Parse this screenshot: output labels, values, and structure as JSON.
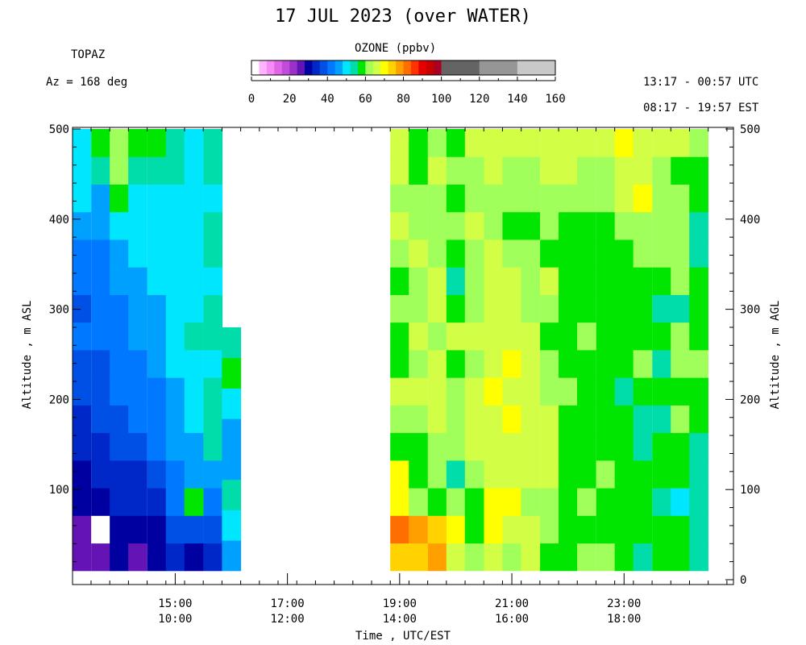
{
  "header": {
    "title": "17 JUL 2023 (over WATER)",
    "instrument": "TOPAZ",
    "azimuth": "Az = 168 deg",
    "utc_range": "13:17 - 00:57 UTC",
    "local_range": "08:17 - 19:57 EST"
  },
  "colorbar": {
    "title": "OZONE (ppbv)",
    "ticks": [
      "0",
      "20",
      "40",
      "60",
      "80",
      "100",
      "120",
      "140",
      "160"
    ],
    "bins": [
      {
        "from": 0,
        "to": 4,
        "color": "#ffffff"
      },
      {
        "from": 4,
        "to": 8,
        "color": "#ffb4ff"
      },
      {
        "from": 8,
        "to": 12,
        "color": "#f58cf5"
      },
      {
        "from": 12,
        "to": 16,
        "color": "#e066e6"
      },
      {
        "from": 16,
        "to": 20,
        "color": "#c34bd9"
      },
      {
        "from": 20,
        "to": 24,
        "color": "#9b32c8"
      },
      {
        "from": 24,
        "to": 28,
        "color": "#6414b4"
      },
      {
        "from": 28,
        "to": 32,
        "color": "#0000a0"
      },
      {
        "from": 32,
        "to": 36,
        "color": "#0028c8"
      },
      {
        "from": 36,
        "to": 40,
        "color": "#0050e6"
      },
      {
        "from": 40,
        "to": 44,
        "color": "#0078ff"
      },
      {
        "from": 44,
        "to": 48,
        "color": "#00a0ff"
      },
      {
        "from": 48,
        "to": 52,
        "color": "#00e6ff"
      },
      {
        "from": 52,
        "to": 56,
        "color": "#00dcaa"
      },
      {
        "from": 56,
        "to": 60,
        "color": "#00e600"
      },
      {
        "from": 60,
        "to": 64,
        "color": "#a0ff5a"
      },
      {
        "from": 64,
        "to": 68,
        "color": "#d2ff46"
      },
      {
        "from": 68,
        "to": 72,
        "color": "#ffff00"
      },
      {
        "from": 72,
        "to": 76,
        "color": "#ffd200"
      },
      {
        "from": 76,
        "to": 80,
        "color": "#ffa000"
      },
      {
        "from": 80,
        "to": 84,
        "color": "#ff6e00"
      },
      {
        "from": 84,
        "to": 88,
        "color": "#ff3200"
      },
      {
        "from": 88,
        "to": 92,
        "color": "#e60000"
      },
      {
        "from": 92,
        "to": 96,
        "color": "#c80000"
      },
      {
        "from": 96,
        "to": 100,
        "color": "#aa0023"
      },
      {
        "from": 100,
        "to": 120,
        "color": "#646464"
      },
      {
        "from": 120,
        "to": 140,
        "color": "#969696"
      },
      {
        "from": 140,
        "to": 160,
        "color": "#c8c8c8"
      }
    ]
  },
  "chart_data": {
    "type": "heatmap",
    "xlabel": "Time , UTC/EST",
    "ylabel_left": "Altitude , m ASL",
    "ylabel_right": "Altitude , m AGL",
    "x_ticks": [
      {
        "utc": "15:00",
        "local": "10:00",
        "hour": 15
      },
      {
        "utc": "17:00",
        "local": "12:00",
        "hour": 17
      },
      {
        "utc": "19:00",
        "local": "14:00",
        "hour": 19
      },
      {
        "utc": "21:00",
        "local": "16:00",
        "hour": 21
      },
      {
        "utc": "23:00",
        "local": "18:00",
        "hour": 23
      }
    ],
    "xlim_hours_utc": [
      13.17,
      24.95
    ],
    "ylim_left_m": [
      0,
      500
    ],
    "ylim_right_m": [
      0,
      500
    ],
    "y_ticks_left": [
      100,
      200,
      300,
      400,
      500
    ],
    "y_ticks_right": [
      0,
      100,
      200,
      300,
      400,
      500
    ],
    "profile_bottom_m": 10,
    "colorbar_range_ppbv": [
      0,
      160
    ],
    "profiles": [
      {
        "t": 13.33,
        "top": 500,
        "o3": [
          24,
          26,
          30,
          30,
          32,
          34,
          36,
          38,
          40,
          38,
          40,
          42,
          44,
          48,
          48,
          50
        ]
      },
      {
        "t": 13.67,
        "top": 500,
        "o3": [
          26,
          2,
          30,
          32,
          34,
          36,
          36,
          38,
          40,
          40,
          40,
          42,
          44,
          46,
          52,
          58
        ]
      },
      {
        "t": 14.0,
        "top": 500,
        "o3": [
          28,
          30,
          32,
          34,
          36,
          38,
          40,
          40,
          40,
          42,
          44,
          46,
          50,
          58,
          62,
          62
        ]
      },
      {
        "t": 14.33,
        "top": 500,
        "o3": [
          26,
          28,
          32,
          34,
          38,
          40,
          42,
          42,
          44,
          44,
          46,
          48,
          50,
          50,
          54,
          56
        ]
      },
      {
        "t": 14.67,
        "top": 500,
        "o3": [
          28,
          30,
          34,
          38,
          40,
          40,
          42,
          44,
          46,
          46,
          48,
          48,
          50,
          50,
          52,
          58
        ]
      },
      {
        "t": 15.0,
        "top": 500,
        "o3": [
          34,
          36,
          40,
          42,
          44,
          46,
          46,
          48,
          50,
          50,
          48,
          48,
          50,
          50,
          54,
          54
        ]
      },
      {
        "t": 15.33,
        "top": 500,
        "o3": [
          30,
          36,
          58,
          44,
          46,
          48,
          50,
          50,
          52,
          50,
          50,
          50,
          50,
          50,
          48,
          50
        ]
      },
      {
        "t": 15.67,
        "top": 500,
        "o3": [
          34,
          38,
          42,
          46,
          52,
          52,
          54,
          50,
          52,
          52,
          50,
          52,
          52,
          50,
          54,
          54
        ]
      },
      {
        "t": 16.0,
        "top": 280,
        "o3": [
          44,
          48,
          54,
          44,
          46,
          50,
          58,
          54
        ]
      },
      {
        "t": 19.0,
        "top": 500,
        "o3": [
          72,
          80,
          68,
          70,
          58,
          62,
          64,
          58,
          56,
          62,
          58,
          62,
          64,
          62,
          64,
          66
        ]
      },
      {
        "t": 19.33,
        "top": 500,
        "o3": [
          72,
          76,
          62,
          58,
          56,
          62,
          64,
          62,
          64,
          62,
          62,
          64,
          62,
          62,
          58,
          58
        ]
      },
      {
        "t": 19.67,
        "top": 500,
        "o3": [
          76,
          72,
          58,
          60,
          62,
          64,
          64,
          66,
          62,
          64,
          64,
          62,
          62,
          62,
          64,
          62
        ]
      },
      {
        "t": 20.0,
        "top": 500,
        "o3": [
          64,
          70,
          60,
          54,
          60,
          62,
          62,
          58,
          64,
          58,
          54,
          58,
          62,
          58,
          62,
          58
        ]
      },
      {
        "t": 20.33,
        "top": 500,
        "o3": [
          62,
          58,
          56,
          62,
          64,
          66,
          64,
          62,
          66,
          62,
          62,
          62,
          64,
          62,
          62,
          64
        ]
      },
      {
        "t": 20.67,
        "top": 500,
        "o3": [
          64,
          70,
          68,
          64,
          64,
          66,
          70,
          66,
          64,
          66,
          64,
          64,
          62,
          62,
          66,
          64
        ]
      },
      {
        "t": 21.0,
        "top": 500,
        "o3": [
          62,
          66,
          70,
          66,
          66,
          68,
          66,
          68,
          66,
          66,
          64,
          62,
          58,
          62,
          62,
          64
        ]
      },
      {
        "t": 21.33,
        "top": 500,
        "o3": [
          64,
          64,
          62,
          64,
          66,
          66,
          64,
          66,
          64,
          62,
          62,
          62,
          58,
          62,
          62,
          66
        ]
      },
      {
        "t": 21.67,
        "top": 500,
        "o3": [
          58,
          62,
          62,
          66,
          64,
          64,
          62,
          62,
          58,
          62,
          64,
          58,
          62,
          62,
          64,
          66
        ]
      },
      {
        "t": 22.0,
        "top": 500,
        "o3": [
          58,
          56,
          58,
          58,
          58,
          58,
          62,
          58,
          58,
          58,
          58,
          58,
          58,
          62,
          64,
          66
        ]
      },
      {
        "t": 22.33,
        "top": 500,
        "o3": [
          60,
          58,
          62,
          58,
          56,
          58,
          58,
          58,
          62,
          58,
          58,
          58,
          58,
          62,
          62,
          64
        ]
      },
      {
        "t": 22.67,
        "top": 500,
        "o3": [
          62,
          56,
          58,
          60,
          56,
          58,
          56,
          56,
          58,
          58,
          56,
          58,
          58,
          62,
          62,
          66
        ]
      },
      {
        "t": 23.0,
        "top": 500,
        "o3": [
          58,
          58,
          56,
          58,
          58,
          56,
          54,
          56,
          58,
          58,
          58,
          58,
          62,
          64,
          66,
          70
        ]
      },
      {
        "t": 23.33,
        "top": 500,
        "o3": [
          52,
          58,
          58,
          58,
          54,
          52,
          58,
          62,
          58,
          58,
          58,
          62,
          62,
          70,
          66,
          64
        ]
      },
      {
        "t": 23.67,
        "top": 500,
        "o3": [
          58,
          56,
          54,
          56,
          56,
          54,
          58,
          54,
          58,
          54,
          56,
          62,
          62,
          62,
          62,
          66
        ]
      },
      {
        "t": 24.0,
        "top": 500,
        "o3": [
          56,
          58,
          50,
          56,
          58,
          62,
          58,
          62,
          62,
          54,
          62,
          62,
          62,
          62,
          58,
          64
        ]
      },
      {
        "t": 24.33,
        "top": 500,
        "o3": [
          54,
          52,
          54,
          54,
          54,
          58,
          58,
          62,
          58,
          58,
          58,
          54,
          54,
          56,
          56,
          60
        ]
      }
    ]
  }
}
